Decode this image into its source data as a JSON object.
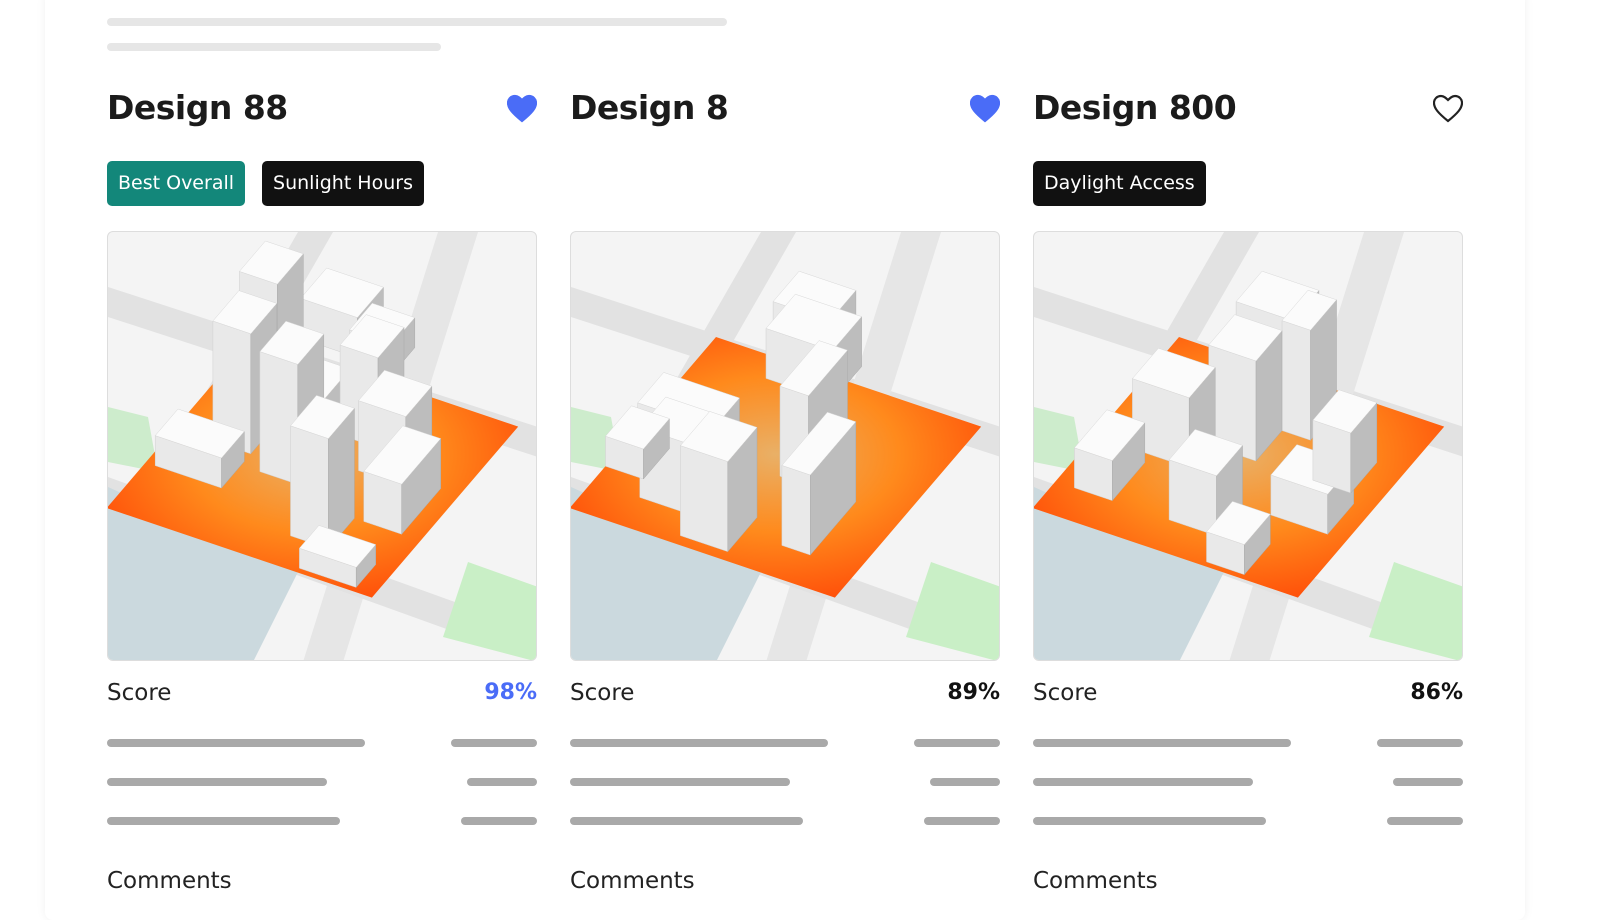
{
  "accent_color": "#4a6cf7",
  "cards": [
    {
      "title": "Design 88",
      "favorited": true,
      "heart_icon": "heart-filled-icon",
      "tags": [
        {
          "label": "Best Overall",
          "style": "teal"
        },
        {
          "label": "Sunlight Hours",
          "style": "black"
        }
      ],
      "score_label": "Score",
      "score": "98%",
      "score_highlight": true,
      "comments_label": "Comments"
    },
    {
      "title": "Design 8",
      "favorited": true,
      "heart_icon": "heart-filled-icon",
      "tags": [],
      "score_label": "Score",
      "score": "89%",
      "score_highlight": false,
      "comments_label": "Comments"
    },
    {
      "title": "Design 800",
      "favorited": false,
      "heart_icon": "heart-outline-icon",
      "tags": [
        {
          "label": "Daylight Access",
          "style": "black"
        }
      ],
      "score_label": "Score",
      "score": "86%",
      "score_highlight": false,
      "comments_label": "Comments"
    }
  ]
}
